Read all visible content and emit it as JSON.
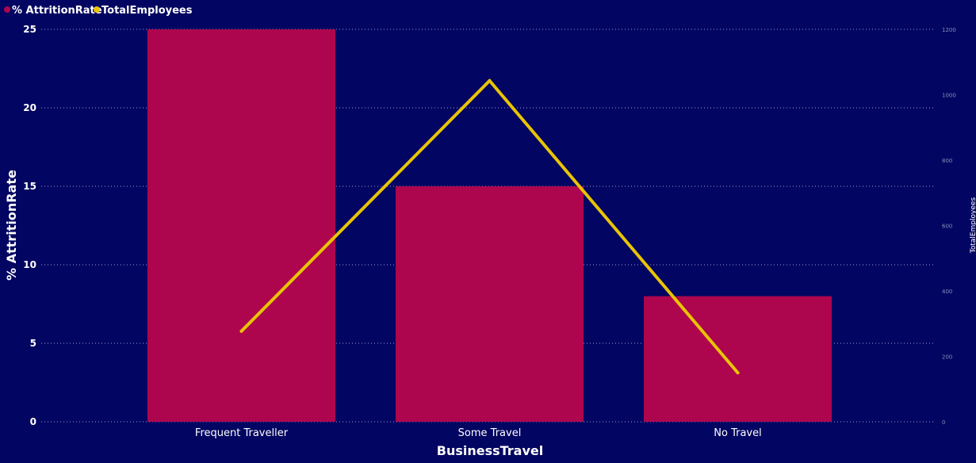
{
  "colors": {
    "background": "#020561",
    "bar": "#AE064E",
    "line": "#E8C406",
    "gridline": "#9aa0d6"
  },
  "chart_data": {
    "type": "bar",
    "categories": [
      "Frequent Traveller",
      "Some Travel",
      "No Travel"
    ],
    "series": [
      {
        "name": "% AttritionRate",
        "kind": "bar",
        "axis": "left",
        "values": [
          25,
          15,
          8
        ]
      },
      {
        "name": "TotalEmployees",
        "kind": "line",
        "axis": "right",
        "values": [
          277,
          1043,
          150
        ]
      }
    ],
    "xlabel": "BusinessTravel",
    "ylabel": "% AttritionRate",
    "y2label": "TotalEmployees",
    "ylim": [
      0,
      25
    ],
    "y2lim": [
      0,
      1200
    ],
    "yticks": [
      0,
      5,
      10,
      15,
      20,
      25
    ],
    "y2ticks": [
      0,
      200,
      400,
      600,
      800,
      1000,
      1200
    ],
    "grid": true,
    "legend_position": "top-left"
  }
}
